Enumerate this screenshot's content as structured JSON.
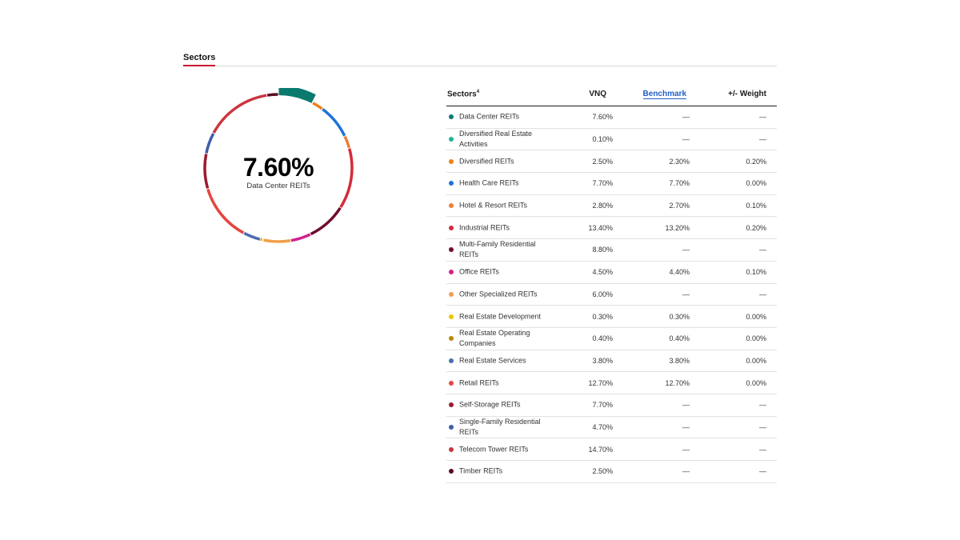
{
  "tabs": {
    "active": "Sectors"
  },
  "donut": {
    "highlight_value": "7.60%",
    "highlight_label": "Data Center REITs"
  },
  "table": {
    "headers": {
      "sector": "Sectors",
      "sector_footnote": "4",
      "vnq": "VNQ",
      "benchmark": "Benchmark",
      "weight": "+/- Weight"
    },
    "rows": [
      {
        "name": "Data Center REITs",
        "vnq": "7.60%",
        "benchmark": "—",
        "weight": "—",
        "color": "#0a7a6f",
        "share": 7.6
      },
      {
        "name": "Diversified Real Estate Activities",
        "vnq": "0.10%",
        "benchmark": "—",
        "weight": "—",
        "color": "#20b39c",
        "share": 0.1
      },
      {
        "name": "Diversified REITs",
        "vnq": "2.50%",
        "benchmark": "2.30%",
        "weight": "0.20%",
        "color": "#f07f1a",
        "share": 2.5
      },
      {
        "name": "Health Care REITs",
        "vnq": "7.70%",
        "benchmark": "7.70%",
        "weight": "0.00%",
        "color": "#1d73d6",
        "share": 7.7
      },
      {
        "name": "Hotel & Resort REITs",
        "vnq": "2.80%",
        "benchmark": "2.70%",
        "weight": "0.10%",
        "color": "#ec7f37",
        "share": 2.8
      },
      {
        "name": "Industrial REITs",
        "vnq": "13.40%",
        "benchmark": "13.20%",
        "weight": "0.20%",
        "color": "#d52b3a",
        "share": 13.4
      },
      {
        "name": "Multi-Family Residential REITs",
        "vnq": "8.80%",
        "benchmark": "—",
        "weight": "—",
        "color": "#6e0d2f",
        "share": 8.8
      },
      {
        "name": "Office REITs",
        "vnq": "4.50%",
        "benchmark": "4.40%",
        "weight": "0.10%",
        "color": "#d3208e",
        "share": 4.5
      },
      {
        "name": "Other Specialized REITs",
        "vnq": "6.00%",
        "benchmark": "—",
        "weight": "—",
        "color": "#f0a04b",
        "share": 6.0
      },
      {
        "name": "Real Estate Development",
        "vnq": "0.30%",
        "benchmark": "0.30%",
        "weight": "0.00%",
        "color": "#f2c200",
        "share": 0.3
      },
      {
        "name": "Real Estate Operating Companies",
        "vnq": "0.40%",
        "benchmark": "0.40%",
        "weight": "0.00%",
        "color": "#b8860b",
        "share": 0.4
      },
      {
        "name": "Real Estate Services",
        "vnq": "3.80%",
        "benchmark": "3.80%",
        "weight": "0.00%",
        "color": "#4c6bb0",
        "share": 3.8
      },
      {
        "name": "Retail REITs",
        "vnq": "12.70%",
        "benchmark": "12.70%",
        "weight": "0.00%",
        "color": "#e5453f",
        "share": 12.7
      },
      {
        "name": "Self-Storage REITs",
        "vnq": "7.70%",
        "benchmark": "—",
        "weight": "—",
        "color": "#9c1a2e",
        "share": 7.7
      },
      {
        "name": "Single-Family Residential REITs",
        "vnq": "4.70%",
        "benchmark": "—",
        "weight": "—",
        "color": "#3e5ea8",
        "share": 4.7
      },
      {
        "name": "Telecom Tower REITs",
        "vnq": "14.70%",
        "benchmark": "—",
        "weight": "—",
        "color": "#c9363f",
        "share": 14.7
      },
      {
        "name": "Timber REITs",
        "vnq": "2.50%",
        "benchmark": "—",
        "weight": "—",
        "color": "#5a0b22",
        "share": 2.5
      }
    ]
  }
}
